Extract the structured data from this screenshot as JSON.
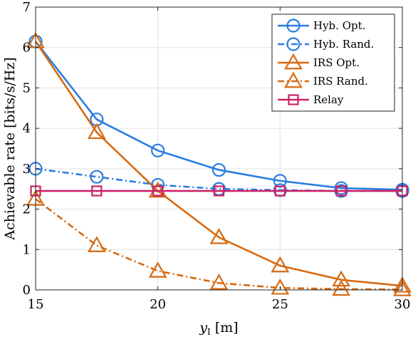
{
  "chart_data": {
    "type": "line",
    "title": "",
    "xlabel_main": "y",
    "xlabel_sub": "I",
    "xlabel_unit": " [m]",
    "ylabel": "Achievable rate [bits/s/Hz]",
    "xlim": [
      15,
      30
    ],
    "ylim": [
      0,
      7
    ],
    "xticks": [
      15,
      20,
      25,
      30
    ],
    "yticks": [
      0,
      1,
      2,
      3,
      4,
      5,
      6,
      7
    ],
    "grid": true,
    "legend_position": "top-right",
    "x": [
      15,
      17.5,
      20,
      22.5,
      25,
      27.5,
      30
    ],
    "series": [
      {
        "name": "Hyb. Opt.",
        "values": [
          6.15,
          4.22,
          3.45,
          2.97,
          2.7,
          2.52,
          2.48
        ],
        "color": "#2a7de1",
        "dash": "solid",
        "marker": "circle"
      },
      {
        "name": "Hyb. Rand.",
        "values": [
          3.0,
          2.8,
          2.6,
          2.5,
          2.47,
          2.45,
          2.45
        ],
        "color": "#2a7de1",
        "dash": "dashdot",
        "marker": "circle"
      },
      {
        "name": "IRS Opt.",
        "values": [
          6.15,
          3.9,
          2.45,
          1.3,
          0.6,
          0.25,
          0.1
        ],
        "color": "#d66a12",
        "dash": "solid",
        "marker": "triangle"
      },
      {
        "name": "IRS Rand.",
        "values": [
          2.25,
          1.1,
          0.47,
          0.17,
          0.05,
          0.02,
          0.01
        ],
        "color": "#d66a12",
        "dash": "dashdot",
        "marker": "triangle"
      },
      {
        "name": "Relay",
        "values": [
          2.45,
          2.45,
          2.45,
          2.45,
          2.45,
          2.45,
          2.45
        ],
        "color": "#cc2266",
        "dash": "solid",
        "marker": "square"
      }
    ]
  }
}
